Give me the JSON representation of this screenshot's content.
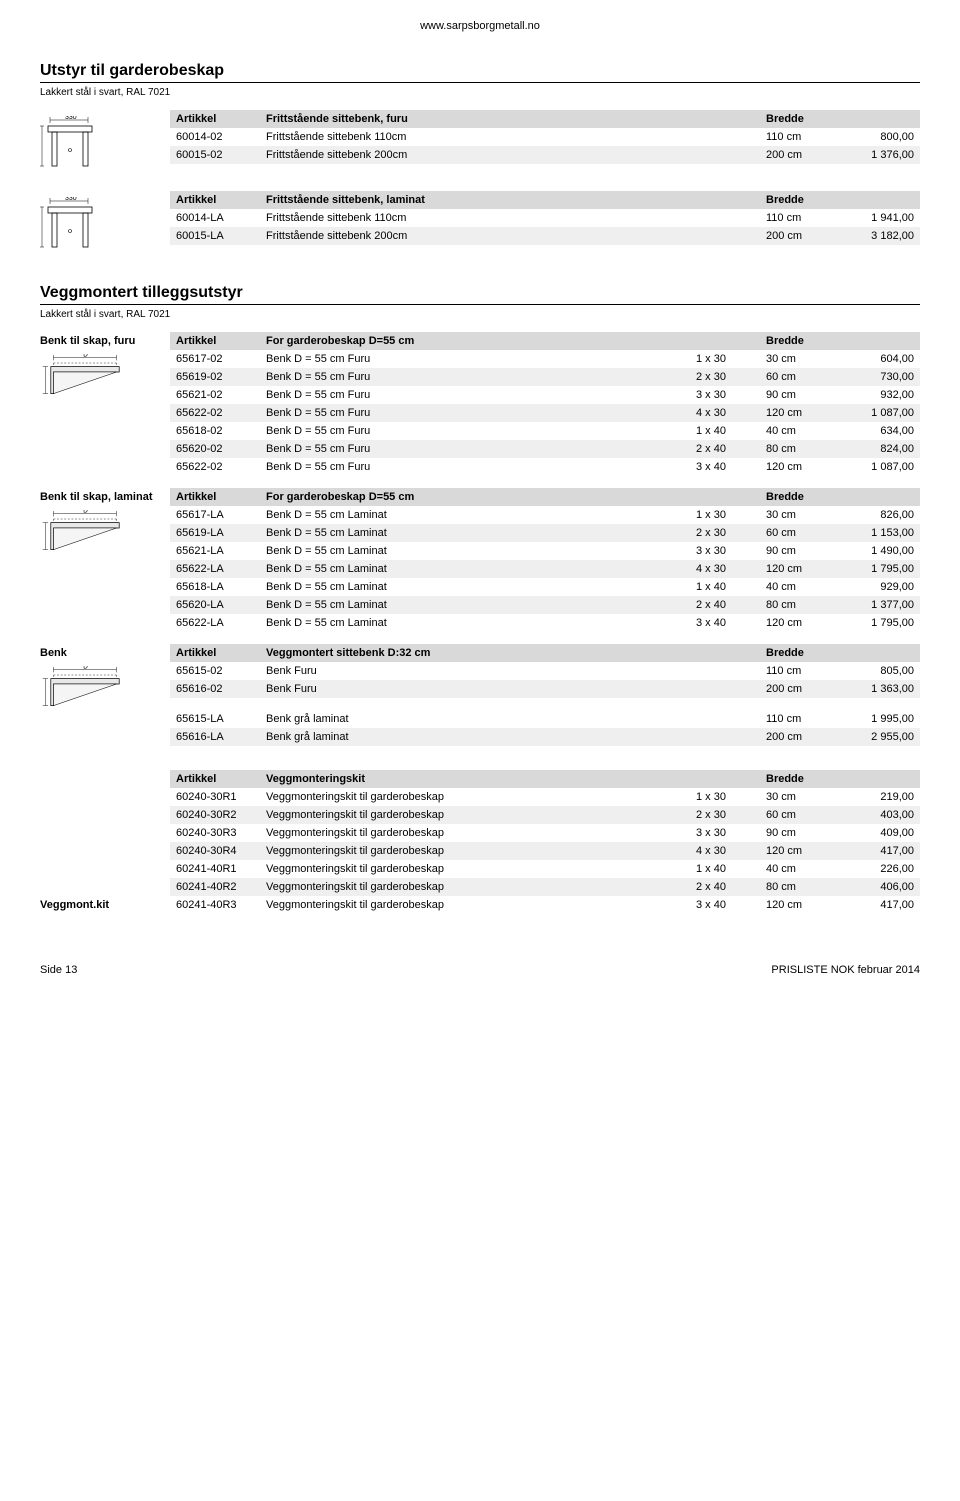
{
  "url": "www.sarpsborgmetall.no",
  "section1": {
    "title": "Utstyr til garderobeskap",
    "subtitle": "Lakkert stål i svart, RAL 7021",
    "table1": {
      "h1": "Artikkel",
      "h2": "Frittstående sittebenk, furu",
      "h3": "Bredde",
      "rows": [
        {
          "a": "60014-02",
          "b": "Frittstående sittebenk 110cm",
          "c": "110 cm",
          "d": "800,00"
        },
        {
          "a": "60015-02",
          "b": "Frittstående sittebenk 200cm",
          "c": "200 cm",
          "d": "1 376,00"
        }
      ]
    },
    "table2": {
      "h1": "Artikkel",
      "h2": "Frittstående sittebenk, laminat",
      "h3": "Bredde",
      "rows": [
        {
          "a": "60014-LA",
          "b": "Frittstående sittebenk 110cm",
          "c": "110 cm",
          "d": "1 941,00"
        },
        {
          "a": "60015-LA",
          "b": "Frittstående sittebenk 200cm",
          "c": "200 cm",
          "d": "3 182,00"
        }
      ]
    }
  },
  "section2": {
    "title": "Veggmontert tilleggsutstyr",
    "subtitle": "Lakkert stål i svart, RAL 7021",
    "tableA": {
      "label": "Benk til skap, furu",
      "h1": "Artikkel",
      "h2": "For garderobeskap D=55 cm",
      "h3": "Bredde",
      "rows": [
        {
          "a": "65617-02",
          "b": "Benk D = 55 cm Furu",
          "c": "1 x 30",
          "d": "30 cm",
          "e": "604,00"
        },
        {
          "a": "65619-02",
          "b": "Benk D = 55 cm Furu",
          "c": "2 x 30",
          "d": "60 cm",
          "e": "730,00"
        },
        {
          "a": "65621-02",
          "b": "Benk D = 55 cm Furu",
          "c": "3 x 30",
          "d": "90 cm",
          "e": "932,00"
        },
        {
          "a": "65622-02",
          "b": "Benk D = 55 cm Furu",
          "c": "4 x 30",
          "d": "120 cm",
          "e": "1 087,00"
        },
        {
          "a": "65618-02",
          "b": "Benk D = 55 cm Furu",
          "c": "1 x 40",
          "d": "40 cm",
          "e": "634,00"
        },
        {
          "a": "65620-02",
          "b": "Benk D = 55 cm Furu",
          "c": "2 x 40",
          "d": "80 cm",
          "e": "824,00"
        },
        {
          "a": "65622-02",
          "b": "Benk D = 55 cm Furu",
          "c": "3 x 40",
          "d": "120 cm",
          "e": "1 087,00"
        }
      ]
    },
    "tableB": {
      "label": "Benk til skap, laminat",
      "h1": "Artikkel",
      "h2": "For garderobeskap D=55 cm",
      "h3": "Bredde",
      "rows": [
        {
          "a": "65617-LA",
          "b": "Benk D = 55 cm Laminat",
          "c": "1 x 30",
          "d": "30 cm",
          "e": "826,00"
        },
        {
          "a": "65619-LA",
          "b": "Benk D = 55 cm Laminat",
          "c": "2 x 30",
          "d": "60 cm",
          "e": "1 153,00"
        },
        {
          "a": "65621-LA",
          "b": "Benk D = 55 cm Laminat",
          "c": "3 x 30",
          "d": "90 cm",
          "e": "1 490,00"
        },
        {
          "a": "65622-LA",
          "b": "Benk D = 55 cm Laminat",
          "c": "4 x 30",
          "d": "120 cm",
          "e": "1 795,00"
        },
        {
          "a": "65618-LA",
          "b": "Benk D = 55 cm Laminat",
          "c": "1 x 40",
          "d": "40 cm",
          "e": "929,00"
        },
        {
          "a": "65620-LA",
          "b": "Benk D = 55 cm Laminat",
          "c": "2 x 40",
          "d": "80 cm",
          "e": "1 377,00"
        },
        {
          "a": "65622-LA",
          "b": "Benk D = 55 cm Laminat",
          "c": "3 x 40",
          "d": "120 cm",
          "e": "1 795,00"
        }
      ]
    },
    "tableC": {
      "label": "Benk",
      "h1": "Artikkel",
      "h2": "Veggmontert sittebenk D:32 cm",
      "h3": "Bredde",
      "group1": [
        {
          "a": "65615-02",
          "b": "Benk Furu",
          "c": "110 cm",
          "d": "805,00"
        },
        {
          "a": "65616-02",
          "b": "Benk Furu",
          "c": "200 cm",
          "d": "1 363,00"
        }
      ],
      "group2": [
        {
          "a": "65615-LA",
          "b": "Benk grå laminat",
          "c": "110 cm",
          "d": "1 995,00"
        },
        {
          "a": "65616-LA",
          "b": "Benk grå laminat",
          "c": "200 cm",
          "d": "2 955,00"
        }
      ]
    },
    "tableD": {
      "label": "Veggmont.kit",
      "h1": "Artikkel",
      "h2": "Veggmonteringskit",
      "h3": "Bredde",
      "rows": [
        {
          "a": "60240-30R1",
          "b": "Veggmonteringskit til garderobeskap",
          "c": "1 x 30",
          "d": "30 cm",
          "e": "219,00"
        },
        {
          "a": "60240-30R2",
          "b": "Veggmonteringskit til garderobeskap",
          "c": "2 x 30",
          "d": "60 cm",
          "e": "403,00"
        },
        {
          "a": "60240-30R3",
          "b": "Veggmonteringskit til garderobeskap",
          "c": "3 x 30",
          "d": "90 cm",
          "e": "409,00"
        },
        {
          "a": "60240-30R4",
          "b": "Veggmonteringskit til garderobeskap",
          "c": "4 x 30",
          "d": "120 cm",
          "e": "417,00"
        },
        {
          "a": "60241-40R1",
          "b": "Veggmonteringskit til garderobeskap",
          "c": "1 x 40",
          "d": "40 cm",
          "e": "226,00"
        },
        {
          "a": "60241-40R2",
          "b": "Veggmonteringskit til garderobeskap",
          "c": "2 x 40",
          "d": "80 cm",
          "e": "406,00"
        },
        {
          "a": "60241-40R3",
          "b": "Veggmonteringskit til garderobeskap",
          "c": "3 x 40",
          "d": "120 cm",
          "e": "417,00"
        }
      ]
    }
  },
  "footer": {
    "left": "Side 13",
    "right": "PRISLISTE NOK februar 2014"
  },
  "drawings": {
    "bench_top": "330",
    "bench_side": "440",
    "bracket_d": "D",
    "bracket_h": "290"
  },
  "colors": {
    "header_bg": "#d9d9d9",
    "row_shade": "#efefef",
    "text": "#000000",
    "bg": "#ffffff"
  }
}
